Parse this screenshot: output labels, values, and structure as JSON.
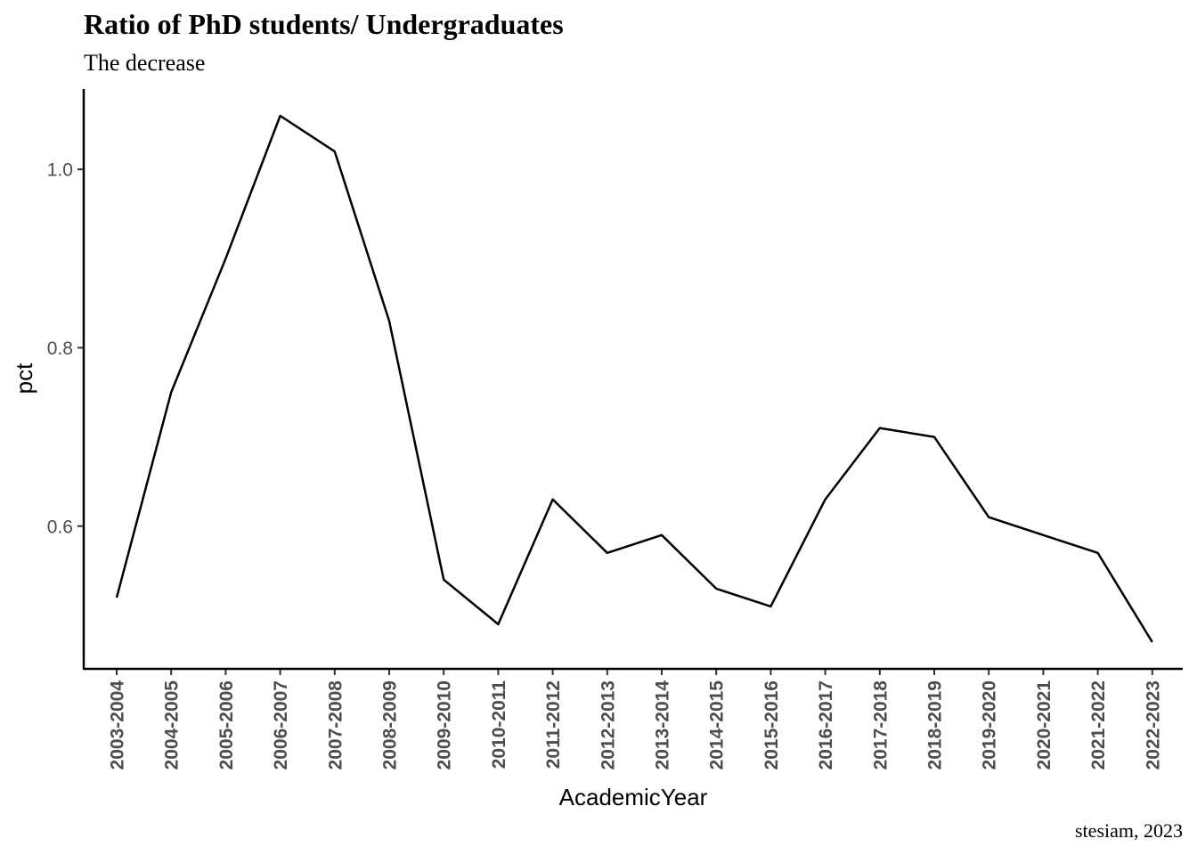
{
  "chart_data": {
    "type": "line",
    "title": "Ratio of PhD students/ Undergraduates",
    "subtitle": "The decrease",
    "caption": "stesiam, 2023",
    "xlabel": "AcademicYear",
    "ylabel": "pct",
    "categories": [
      "2003-2004",
      "2004-2005",
      "2005-2006",
      "2006-2007",
      "2007-2008",
      "2008-2009",
      "2009-2010",
      "2010-2011",
      "2011-2012",
      "2012-2013",
      "2013-2014",
      "2014-2015",
      "2015-2016",
      "2016-2017",
      "2017-2018",
      "2018-2019",
      "2019-2020",
      "2020-2021",
      "2021-2022",
      "2022-2023"
    ],
    "series": [
      {
        "values": [
          0.52,
          0.75,
          0.9,
          1.06,
          1.02,
          0.83,
          0.54,
          0.49,
          0.63,
          0.57,
          0.59,
          0.53,
          0.51,
          0.63,
          0.71,
          0.7,
          0.61,
          0.59,
          0.57,
          0.47
        ]
      }
    ],
    "ylim": [
      0.44,
      1.09
    ],
    "yticks": [
      0.6,
      0.8,
      1.0
    ],
    "ytick_labels": [
      "0.6",
      "0.8",
      "1.0"
    ],
    "grid": false,
    "legend": "none",
    "line_color": "#000000"
  }
}
